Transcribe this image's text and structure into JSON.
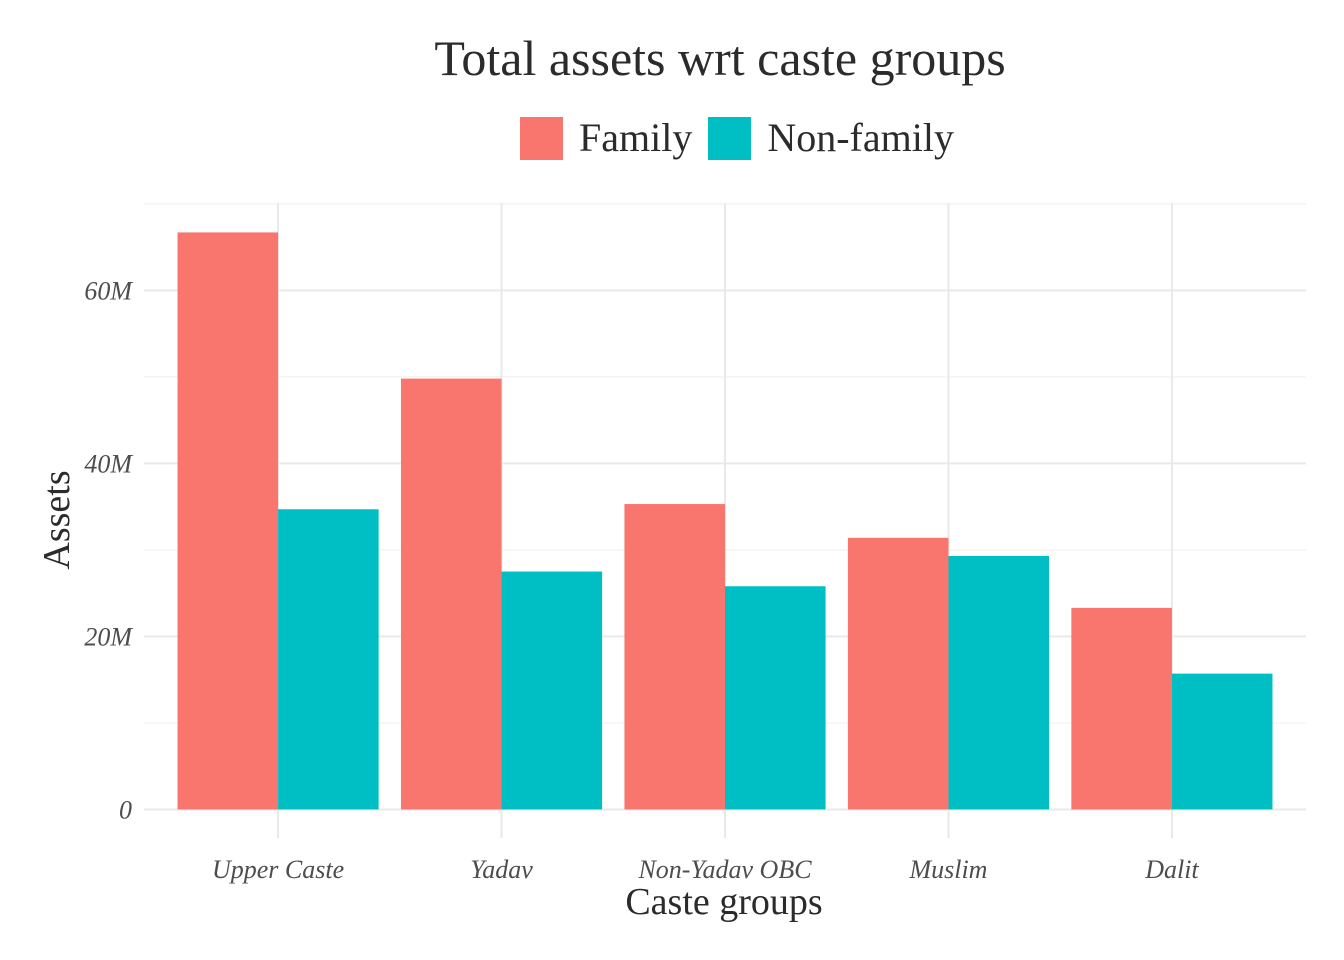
{
  "chart_data": {
    "type": "bar",
    "title": "Total assets wrt caste groups",
    "xlabel": "Caste groups",
    "ylabel": "Assets",
    "categories": [
      "Upper Caste",
      "Yadav",
      "Non-Yadav OBC",
      "Muslim",
      "Dalit"
    ],
    "series": [
      {
        "name": "Family",
        "color": "#F8766D",
        "values": [
          66700000,
          49800000,
          35300000,
          31400000,
          23300000
        ]
      },
      {
        "name": "Non-family",
        "color": "#00BFC4",
        "values": [
          34700000,
          27500000,
          25800000,
          29300000,
          15700000
        ]
      }
    ],
    "y_ticks": [
      {
        "value": 0,
        "label": "0"
      },
      {
        "value": 20000000,
        "label": "20M"
      },
      {
        "value": 40000000,
        "label": "40M"
      },
      {
        "value": 60000000,
        "label": "60M"
      }
    ],
    "ylim": [
      -3300000,
      70100000
    ],
    "grid": true,
    "legend_position": "top"
  }
}
